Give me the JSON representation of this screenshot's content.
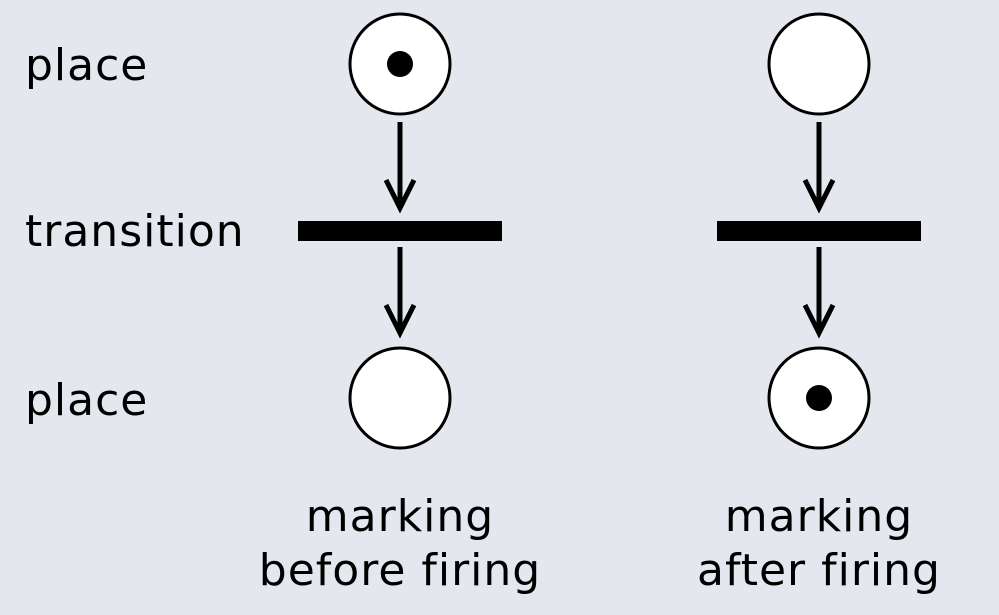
{
  "labels": {
    "place_top": "place",
    "transition": "transition",
    "place_bottom": "place"
  },
  "nets": [
    {
      "caption_line1": "marking",
      "caption_line2": "before firing",
      "top_place_tokens": 1,
      "bottom_place_tokens": 0
    },
    {
      "caption_line1": "marking",
      "caption_line2": "after firing",
      "top_place_tokens": 0,
      "bottom_place_tokens": 1
    }
  ],
  "colors": {
    "background": "#e4e8ee",
    "place_fill": "#ffffff",
    "stroke": "#000000"
  }
}
